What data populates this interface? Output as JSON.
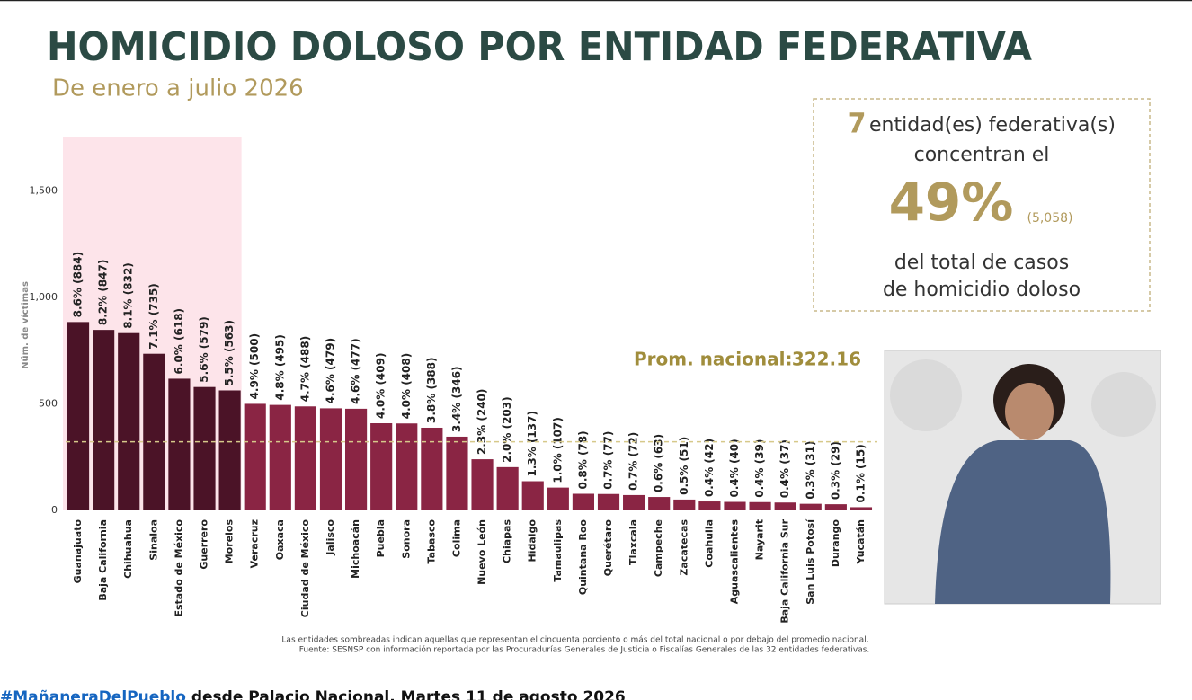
{
  "chart_data": {
    "type": "bar",
    "title": "HOMICIDIO DOLOSO POR ENTIDAD FEDERATIVA",
    "subtitle": "De enero a julio 2026",
    "y_label": "Núm. de víctimas",
    "categories": [
      "Guanajuato",
      "Baja California",
      "Chihuahua",
      "Sinaloa",
      "Estado de México",
      "Guerrero",
      "Morelos",
      "Veracruz",
      "Oaxaca",
      "Ciudad de México",
      "Jalisco",
      "Michoacán",
      "Puebla",
      "Sonora",
      "Tabasco",
      "Colima",
      "Nuevo León",
      "Chiapas",
      "Hidalgo",
      "Tamaulipas",
      "Quintana Roo",
      "Querétaro",
      "Tlaxcala",
      "Campeche",
      "Zacatecas",
      "Coahuila",
      "Aguascalientes",
      "Nayarit",
      "Baja California Sur",
      "San Luis Potosí",
      "Durango",
      "Yucatán"
    ],
    "values": [
      884,
      847,
      832,
      735,
      618,
      579,
      563,
      500,
      495,
      488,
      479,
      477,
      409,
      408,
      388,
      346,
      240,
      203,
      137,
      107,
      78,
      77,
      72,
      63,
      51,
      42,
      40,
      39,
      37,
      31,
      29,
      15
    ],
    "value_labels": [
      "8.6% (884)",
      "8.2% (847)",
      "8.1% (832)",
      "7.1% (735)",
      "6.0% (618)",
      "5.6% (579)",
      "5.5% (563)",
      "4.9% (500)",
      "4.8% (495)",
      "4.7% (488)",
      "4.6% (479)",
      "4.6% (477)",
      "4.0% (409)",
      "4.0% (408)",
      "3.8% (388)",
      "3.4% (346)",
      "2.3% (240)",
      "2.0% (203)",
      "1.3% (137)",
      "1.0% (107)",
      "0.8% (78)",
      "0.7% (77)",
      "0.7% (72)",
      "0.6% (63)",
      "0.5% (51)",
      "0.4% (42)",
      "0.4% (40)",
      "0.4% (39)",
      "0.4% (37)",
      "0.3% (31)",
      "0.3% (29)",
      "0.1% (15)"
    ],
    "colors": [
      "#4b1327",
      "#4b1327",
      "#4b1327",
      "#4b1327",
      "#4b1327",
      "#4b1327",
      "#4b1327",
      "#8a2544",
      "#8a2544",
      "#8a2544",
      "#8a2544",
      "#8a2544",
      "#8a2544",
      "#8a2544",
      "#8a2544",
      "#8a2544",
      "#8a2544",
      "#8a2544",
      "#8a2544",
      "#8a2544",
      "#8a2544",
      "#8a2544",
      "#8a2544",
      "#8a2544",
      "#8a2544",
      "#8a2544",
      "#8a2544",
      "#8a2544",
      "#8a2544",
      "#8a2544",
      "#8a2544",
      "#8a2544"
    ],
    "highlight_color": "#fde4ea",
    "ylim": [
      0,
      1750
    ],
    "yticks": [
      0,
      500,
      {
        "value": 1000,
        "label": "1,000"
      },
      {
        "value": 1500,
        "label": "1,500"
      }
    ],
    "average_label": "Prom. nacional:",
    "average": 322.16
  },
  "summary_box": {
    "count": "7",
    "line1": "entidad(es) federativa(s)",
    "line2": "concentran el",
    "percent": "49%",
    "total": "(5,058)",
    "line3": "del total de casos",
    "line4": "de homicidio doloso"
  },
  "footnotes": [
    "Las entidades sombreadas indican aquellas que representan el cincuenta porciento o más del total nacional o por debajo del promedio nacional.",
    "Fuente: SESNSP con información reportada por las Procuradurías Generales de Justicia o Fiscalías Generales de las 32 entidades federativas."
  ],
  "video_title": {
    "hashtag": "#MañaneraDelPueblo",
    "text": " desde Palacio Nacional. Martes 11 de agosto 2026"
  }
}
